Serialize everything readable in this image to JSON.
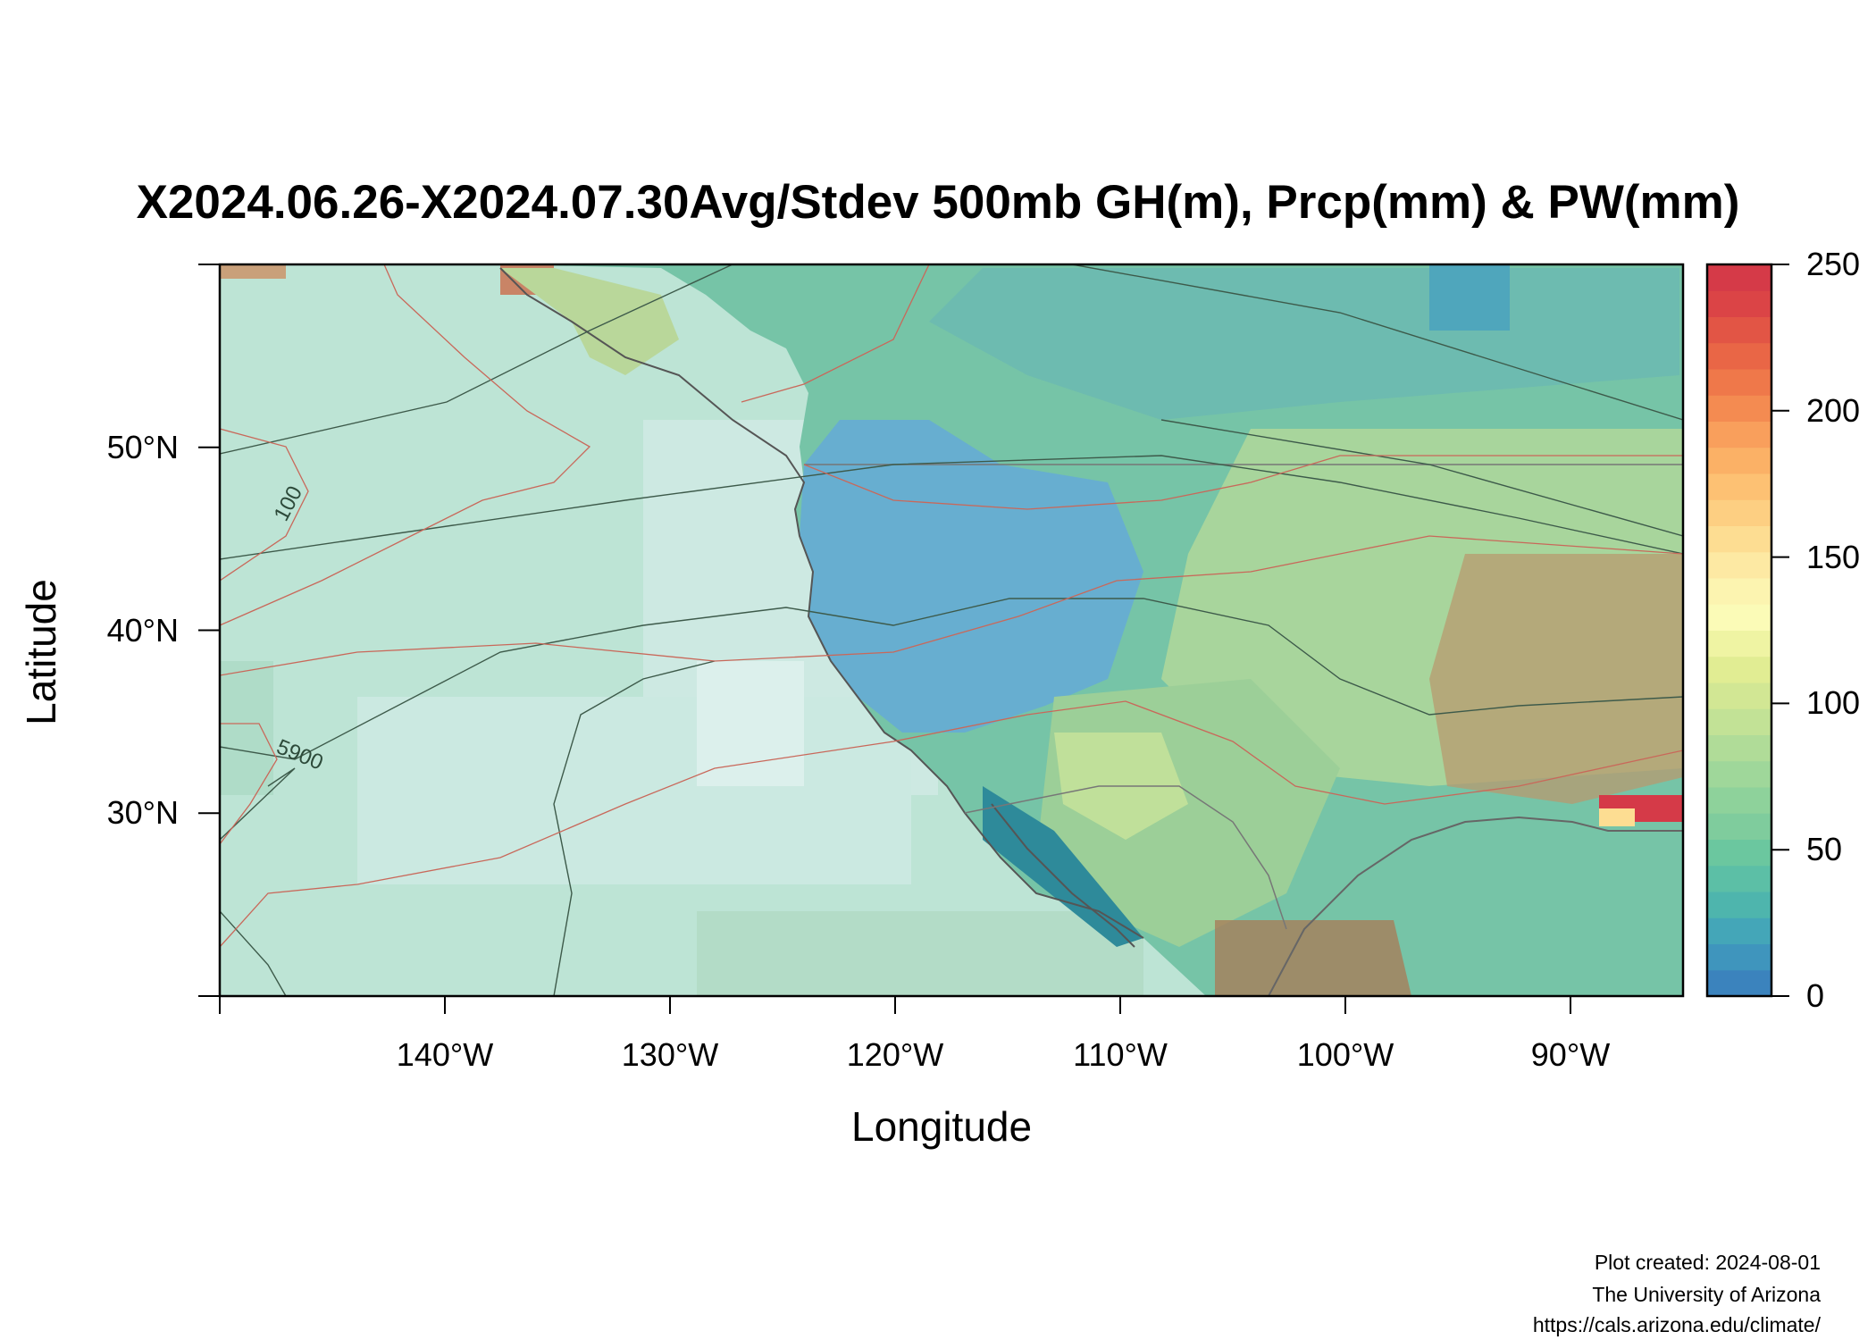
{
  "title": "X2024.06.26-X2024.07.30Avg/Stdev 500mb GH(m), Prcp(mm) & PW(mm)",
  "x_axis": {
    "label": "Longitude",
    "ticks": [
      "140°W",
      "130°W",
      "120°W",
      "110°W",
      "100°W",
      "90°W"
    ],
    "tick_values": [
      -140,
      -130,
      -120,
      -110,
      -100,
      -90
    ],
    "range": [
      -150,
      -85
    ]
  },
  "y_axis": {
    "label": "Latitude",
    "ticks": [
      "30°N",
      "40°N",
      "50°N"
    ],
    "tick_values": [
      30,
      40,
      50
    ],
    "range": [
      20,
      60
    ]
  },
  "colorbar": {
    "ticks": [
      "0",
      "50",
      "100",
      "150",
      "200",
      "250"
    ],
    "tick_values": [
      0,
      50,
      100,
      150,
      200,
      250
    ],
    "range": [
      0,
      250
    ],
    "colors": [
      "#3b83bd",
      "#3f95bd",
      "#44a6b8",
      "#4eb5ad",
      "#5cbfa6",
      "#6bc79f",
      "#7fcc9d",
      "#8ed29b",
      "#9fd79a",
      "#b0dc98",
      "#c2e296",
      "#d2e794",
      "#e1ed93",
      "#eff4a3",
      "#fbfbb7",
      "#fcf4b0",
      "#fde9a3",
      "#fddd92",
      "#fdcf82",
      "#fdc173",
      "#fbb166",
      "#f99f5c",
      "#f48b51",
      "#ef784a",
      "#e96646",
      "#e25545",
      "#db4446",
      "#d53a48"
    ]
  },
  "contour_labels": [
    "100",
    "5900"
  ],
  "credits": [
    "Plot created: 2024-08-01",
    "The University of Arizona",
    "https://cals.arizona.edu/climate/"
  ]
}
